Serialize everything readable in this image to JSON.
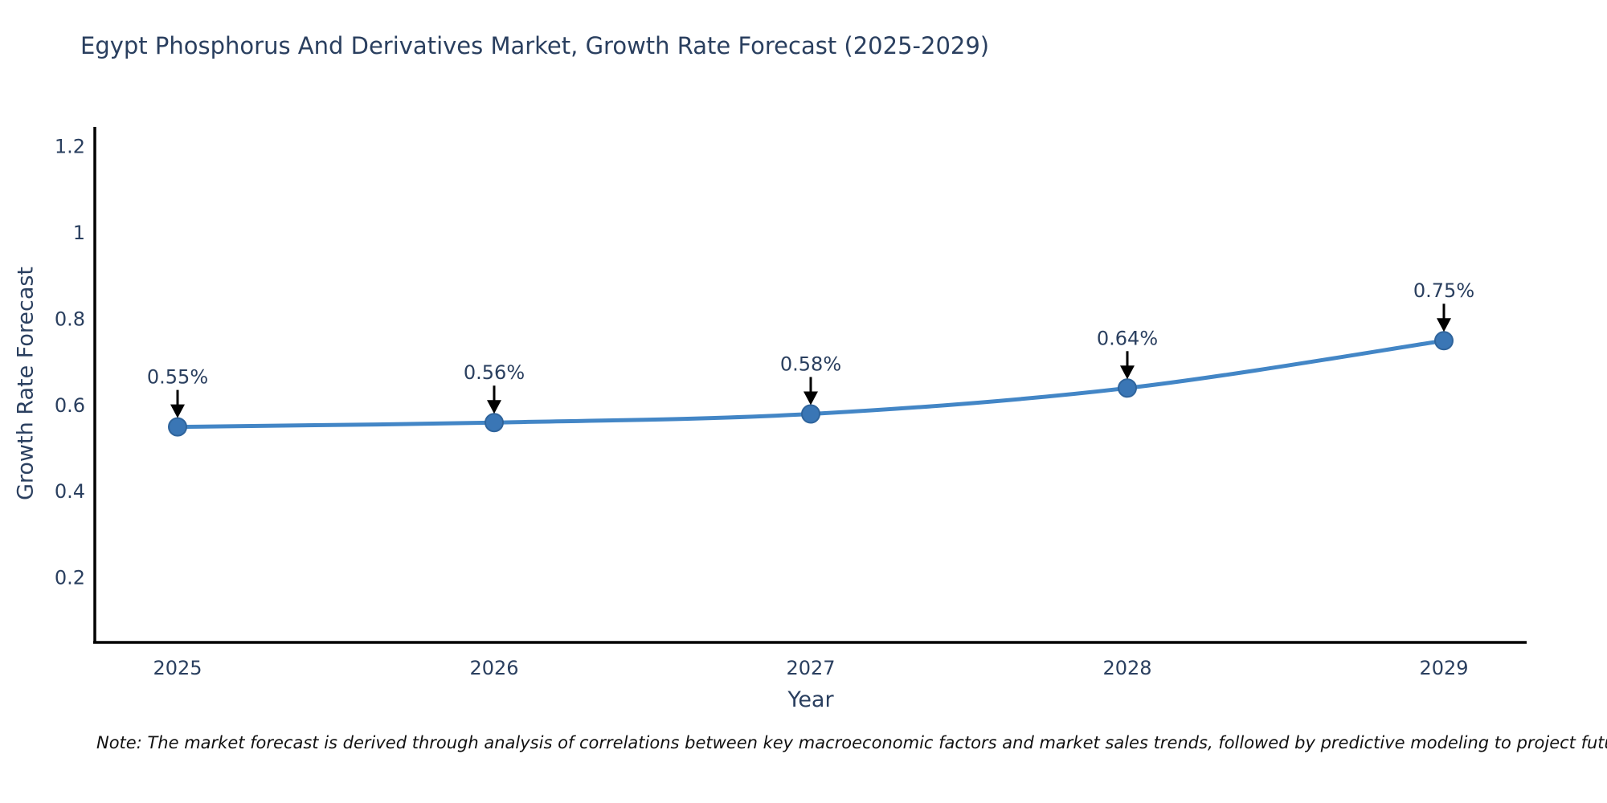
{
  "page": {
    "background": "#ffffff"
  },
  "chart_data": {
    "type": "line",
    "title": "Egypt Phosphorus And Derivatives Market, Growth Rate Forecast (2025-2029)",
    "xlabel": "Year",
    "ylabel": "Growth Rate Forecast",
    "categories": [
      "2025",
      "2026",
      "2027",
      "2028",
      "2029"
    ],
    "series": [
      {
        "name": "Growth Rate Forecast",
        "values": [
          0.55,
          0.56,
          0.58,
          0.64,
          0.75
        ]
      }
    ],
    "point_labels": [
      "0.55%",
      "0.56%",
      "0.58%",
      "0.64%",
      "0.75%"
    ],
    "ytick_values": [
      0.2,
      0.4,
      0.6,
      0.8,
      1,
      1.2
    ],
    "ytick_labels": [
      "0.2",
      "0.4",
      "0.6",
      "0.8",
      "1",
      "1.2"
    ],
    "ylim": [
      0.05,
      1.246
    ],
    "grid": false,
    "legend_position": "none",
    "line_color": "#4386c6",
    "marker_color": "#3a76b5",
    "marker_edge_color": "#2f649c",
    "annotation_arrow_color": "#000000",
    "axis_color": "#000000",
    "text_color": "#2a3f5f"
  },
  "note": {
    "text": "Note: The market forecast is derived through analysis of correlations between key macroeconomic factors and market sales trends, followed by predictive modeling to project future sales"
  }
}
